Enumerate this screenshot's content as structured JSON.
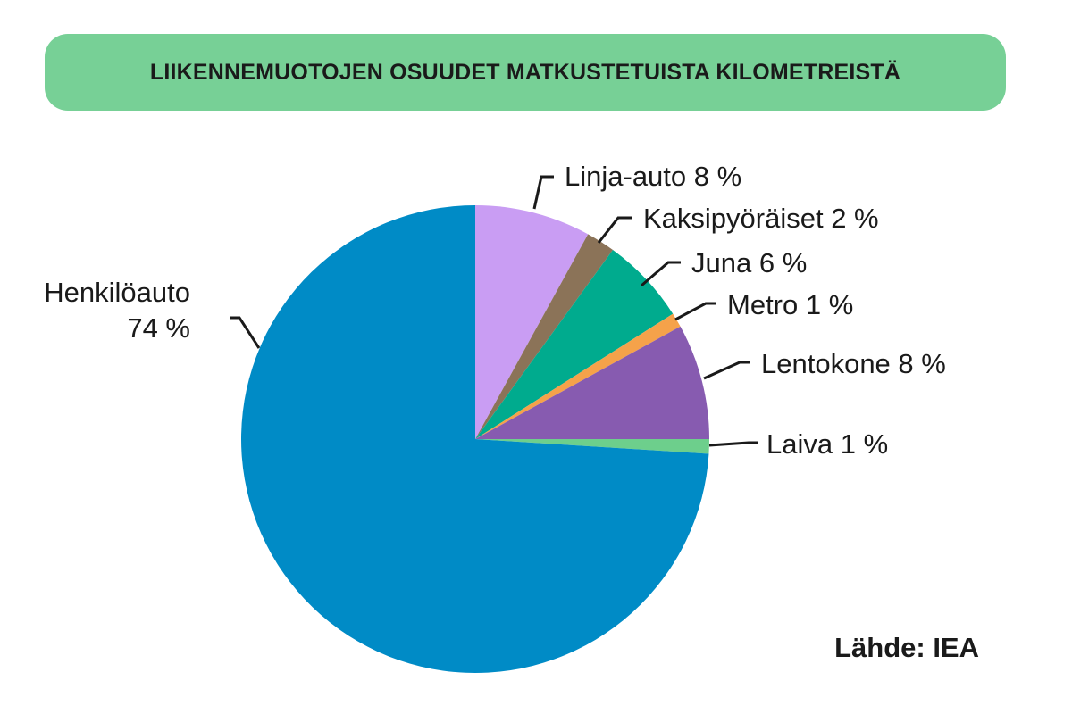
{
  "title": "LIIKENNEMUOTOJEN OSUUDET MATKUSTETUISTA KILOMETREISTÄ",
  "source": "Lähde: IEA",
  "chart_data": {
    "type": "pie",
    "title": "LIIKENNEMUOTOJEN OSUUDET MATKUSTETUISTA KILOMETREISTÄ",
    "unit": "%",
    "start_angle_deg": 0,
    "direction": "clockwise",
    "slices": [
      {
        "name": "Linja-auto",
        "value": 8,
        "label": "Linja-auto 8 %",
        "color": "#c99df3"
      },
      {
        "name": "Kaksipyöräiset",
        "value": 2,
        "label": "Kaksipyöräiset 2 %",
        "color": "#8b7358"
      },
      {
        "name": "Juna",
        "value": 6,
        "label": "Juna 6 %",
        "color": "#00ab8e"
      },
      {
        "name": "Metro",
        "value": 1,
        "label": "Metro 1 %",
        "color": "#f5a24a"
      },
      {
        "name": "Lentokone",
        "value": 8,
        "label": "Lentokone 8 %",
        "color": "#875bb0"
      },
      {
        "name": "Laiva",
        "value": 1,
        "label": "Laiva 1 %",
        "color": "#6dcf8c"
      },
      {
        "name": "Henkilöauto",
        "value": 74,
        "label_lines": [
          "Henkilöauto",
          "74 %"
        ],
        "color": "#008bc6"
      }
    ],
    "leader_color": "#1a1a1a"
  }
}
